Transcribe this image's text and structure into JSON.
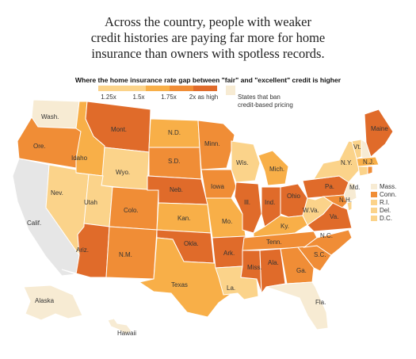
{
  "headline": {
    "line1": "Across the country, people with weaker",
    "line2": "credit histories are paying far more for home",
    "line3": "insurance than owners with spotless records."
  },
  "subtitle": "Where the home insurance rate gap between \"fair\" and \"excellent\" credit is higher",
  "legend": {
    "ticks": [
      "1.25x",
      "1.5x",
      "1.75x",
      "2x as high"
    ],
    "ban_label_line1": "States that ban",
    "ban_label_line2": "credit-based pricing"
  },
  "colors": {
    "ban": "#f7ebd3",
    "c1": "#fbd38a",
    "c2": "#f8af48",
    "c3": "#f08d36",
    "c4": "#e06b2a",
    "grey": "#e6e6e6"
  },
  "chart_data": {
    "type": "choropleth",
    "scale_ticks": [
      1.25,
      1.5,
      1.75,
      2
    ],
    "states": [
      {
        "label": "Wash.",
        "level": "ban"
      },
      {
        "label": "Ore.",
        "level": "c3"
      },
      {
        "label": "Calif.",
        "level": "grey"
      },
      {
        "label": "Idaho",
        "level": "c2"
      },
      {
        "label": "Nev.",
        "level": "c1"
      },
      {
        "label": "Mont.",
        "level": "c4"
      },
      {
        "label": "Wyo.",
        "level": "c1"
      },
      {
        "label": "Utah",
        "level": "c1"
      },
      {
        "label": "Ariz.",
        "level": "c4"
      },
      {
        "label": "Colo.",
        "level": "c3"
      },
      {
        "label": "N.M.",
        "level": "c3"
      },
      {
        "label": "N.D.",
        "level": "c2"
      },
      {
        "label": "S.D.",
        "level": "c3"
      },
      {
        "label": "Neb.",
        "level": "c4"
      },
      {
        "label": "Kan.",
        "level": "c2"
      },
      {
        "label": "Okla.",
        "level": "c4"
      },
      {
        "label": "Texas",
        "level": "c2"
      },
      {
        "label": "Minn.",
        "level": "c3"
      },
      {
        "label": "Iowa",
        "level": "c3"
      },
      {
        "label": "Mo.",
        "level": "c2"
      },
      {
        "label": "Ark.",
        "level": "c4"
      },
      {
        "label": "La.",
        "level": "c1"
      },
      {
        "label": "Wis.",
        "level": "c1"
      },
      {
        "label": "Ill.",
        "level": "c4"
      },
      {
        "label": "Mich.",
        "level": "c2"
      },
      {
        "label": "Ind.",
        "level": "c4"
      },
      {
        "label": "Ohio",
        "level": "c4"
      },
      {
        "label": "Ky.",
        "level": "c2"
      },
      {
        "label": "Tenn.",
        "level": "c3"
      },
      {
        "label": "Miss.",
        "level": "c4"
      },
      {
        "label": "Ala.",
        "level": "c4"
      },
      {
        "label": "Ga.",
        "level": "c3"
      },
      {
        "label": "Fla.",
        "level": "ban"
      },
      {
        "label": "S.C.",
        "level": "c3"
      },
      {
        "label": "N.C.",
        "level": "c3"
      },
      {
        "label": "Va.",
        "level": "c4"
      },
      {
        "label": "W.Va.",
        "level": "c1"
      },
      {
        "label": "Pa.",
        "level": "c4"
      },
      {
        "label": "N.Y.",
        "level": "c1"
      },
      {
        "label": "Vt.",
        "level": "c1"
      },
      {
        "label": "Maine",
        "level": "c4"
      },
      {
        "label": "Mass.",
        "level": "ban"
      },
      {
        "label": "N.J.",
        "level": "c2"
      },
      {
        "label": "Md.",
        "level": "ban"
      },
      {
        "label": "N.H.",
        "level": "c3"
      },
      {
        "label": "R.I.",
        "level": "c1"
      },
      {
        "label": "Conn.",
        "level": "c3"
      },
      {
        "label": "Del.",
        "level": "c1"
      },
      {
        "label": "D.C.",
        "level": "c1"
      },
      {
        "label": "Alaska",
        "level": "ban"
      },
      {
        "label": "Hawaii",
        "level": "ban"
      }
    ]
  }
}
